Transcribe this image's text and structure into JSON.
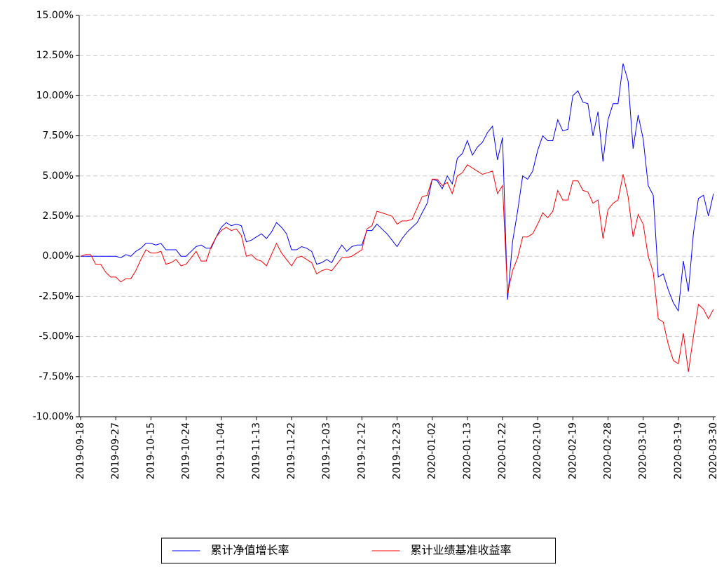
{
  "chart_data": {
    "type": "line",
    "categories": [
      "2019-09-18",
      null,
      null,
      null,
      null,
      null,
      null,
      "2019-09-27",
      null,
      null,
      null,
      null,
      null,
      null,
      "2019-10-15",
      null,
      null,
      null,
      null,
      null,
      null,
      "2019-10-24",
      null,
      null,
      null,
      null,
      null,
      null,
      "2019-11-04",
      null,
      null,
      null,
      null,
      null,
      null,
      "2019-11-13",
      null,
      null,
      null,
      null,
      null,
      null,
      "2019-11-22",
      null,
      null,
      null,
      null,
      null,
      null,
      "2019-12-03",
      null,
      null,
      null,
      null,
      null,
      null,
      "2019-12-12",
      null,
      null,
      null,
      null,
      null,
      null,
      "2019-12-23",
      null,
      null,
      null,
      null,
      null,
      null,
      "2020-01-02",
      null,
      null,
      null,
      null,
      null,
      null,
      "2020-01-13",
      null,
      null,
      null,
      null,
      null,
      null,
      "2020-01-22",
      null,
      null,
      null,
      null,
      null,
      null,
      "2020-02-10",
      null,
      null,
      null,
      null,
      null,
      null,
      "2020-02-19",
      null,
      null,
      null,
      null,
      null,
      null,
      "2020-02-28",
      null,
      null,
      null,
      null,
      null,
      null,
      "2020-03-10",
      null,
      null,
      null,
      null,
      null,
      null,
      "2020-03-19",
      null,
      null,
      null,
      null,
      null,
      null,
      "2020-03-30"
    ],
    "series": [
      {
        "name": "累计净值增长率",
        "color": "#0000ff",
        "values": [
          0,
          0,
          0,
          0,
          0,
          0,
          0,
          0,
          -0.1,
          0.1,
          0,
          0.3,
          0.5,
          0.8,
          0.8,
          0.7,
          0.8,
          0.4,
          0.4,
          0.4,
          0,
          0,
          0.3,
          0.6,
          0.7,
          0.5,
          0.5,
          1.2,
          1.8,
          2.1,
          1.9,
          2,
          1.9,
          0.9,
          1,
          1.2,
          1.4,
          1.1,
          1.5,
          2.1,
          1.8,
          1.4,
          0.4,
          0.4,
          0.6,
          0.5,
          0.3,
          -0.5,
          -0.4,
          -0.2,
          -0.4,
          0.2,
          0.7,
          0.3,
          0.6,
          0.7,
          0.7,
          1.6,
          1.6,
          2,
          1.7,
          1.4,
          1,
          0.6,
          1.1,
          1.5,
          1.8,
          2.1,
          2.7,
          3.3,
          4.8,
          4.7,
          4.2,
          5,
          4.5,
          6.1,
          6.4,
          7.2,
          6.3,
          6.8,
          7.1,
          7.7,
          8.1,
          6,
          7.4,
          -2.7,
          0.9,
          2.8,
          5,
          4.8,
          5.3,
          6.6,
          7.5,
          7.2,
          7.2,
          8.5,
          7.8,
          7.9,
          10,
          10.3,
          9.6,
          9.5,
          7.5,
          9,
          5.9,
          8.5,
          9.5,
          9.5,
          12,
          10.9,
          6.7,
          8.8,
          7.3,
          4.4,
          3.8,
          -1.3,
          -1.1,
          -2.1,
          -2.9,
          -3.4,
          -0.3,
          -2.2,
          1.4,
          3.6,
          3.8,
          2.5,
          3.9
        ]
      },
      {
        "name": "累计业绩基准收益率",
        "color": "#ff0000",
        "values": [
          0,
          0.1,
          0.1,
          -0.5,
          -0.5,
          -1,
          -1.3,
          -1.3,
          -1.6,
          -1.4,
          -1.4,
          -0.9,
          -0.2,
          0.4,
          0.2,
          0.2,
          0.3,
          -0.5,
          -0.4,
          -0.2,
          -0.6,
          -0.5,
          -0.1,
          0.3,
          -0.3,
          -0.3,
          0.6,
          1.2,
          1.6,
          1.8,
          1.6,
          1.7,
          1.3,
          0,
          0.1,
          -0.2,
          -0.3,
          -0.6,
          0.1,
          0.8,
          0.2,
          -0.2,
          -0.6,
          -0.1,
          0,
          -0.2,
          -0.4,
          -1.1,
          -0.9,
          -0.8,
          -0.9,
          -0.5,
          -0.1,
          -0.1,
          0,
          0.2,
          0.4,
          1.7,
          1.9,
          2.8,
          2.7,
          2.6,
          2.5,
          2,
          2.2,
          2.2,
          2.3,
          3,
          3.7,
          3.8,
          4.8,
          4.8,
          4.4,
          4.6,
          3.9,
          5,
          5.2,
          5.7,
          5.5,
          5.3,
          5.1,
          5.2,
          5.3,
          3.9,
          4.4,
          -2.3,
          -0.9,
          -0.1,
          1.2,
          1.2,
          1.4,
          2,
          2.7,
          2.4,
          2.8,
          4.1,
          3.5,
          3.5,
          4.7,
          4.7,
          4.1,
          4,
          3.3,
          3.5,
          1.1,
          2.9,
          3.3,
          3.5,
          5.1,
          3.7,
          1.2,
          2.6,
          2,
          0,
          -1,
          -3.9,
          -4.1,
          -5.5,
          -6.5,
          -6.7,
          -4.8,
          -7.2,
          -5,
          -3,
          -3.3,
          -3.9,
          -3.3
        ]
      }
    ],
    "ylim": [
      -10,
      15
    ],
    "yticks": [
      {
        "value": -10,
        "label": "-10.00%"
      },
      {
        "value": -7.5,
        "label": "-7.50%"
      },
      {
        "value": -5,
        "label": "-5.00%"
      },
      {
        "value": -2.5,
        "label": "-2.50%"
      },
      {
        "value": 0,
        "label": "0.00%"
      },
      {
        "value": 2.5,
        "label": "2.50%"
      },
      {
        "value": 5,
        "label": "5.00%"
      },
      {
        "value": 7.5,
        "label": "7.50%"
      },
      {
        "value": 10,
        "label": "10.00%"
      },
      {
        "value": 12.5,
        "label": "12.50%"
      },
      {
        "value": 15,
        "label": "15.00%"
      }
    ],
    "grid": true,
    "legend": "lower center"
  }
}
